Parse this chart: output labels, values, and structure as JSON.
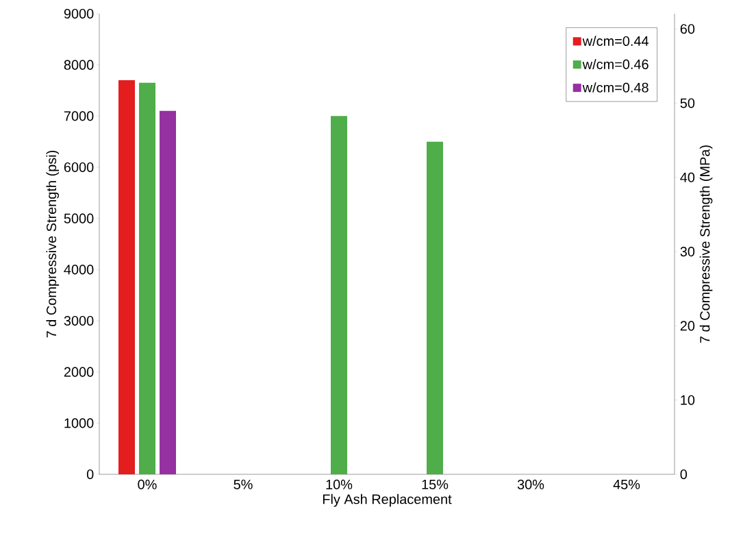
{
  "chart_data": {
    "type": "bar",
    "xlabel": "Fly Ash Replacement",
    "ylabel": "7 d Compressive Strength (psi)",
    "y2label": "7 d Compressive Strength (MPa)",
    "categories": [
      "0%",
      "5%",
      "10%",
      "15%",
      "30%",
      "45%"
    ],
    "series": [
      {
        "name": "w/cm=0.44",
        "color": "#e41d1f",
        "values": [
          7700,
          null,
          null,
          null,
          null,
          null
        ]
      },
      {
        "name": "w/cm=0.46",
        "color": "#4fad4a",
        "values": [
          7650,
          null,
          7000,
          6500,
          null,
          null
        ]
      },
      {
        "name": "w/cm=0.48",
        "color": "#9531a0",
        "values": [
          7100,
          null,
          null,
          null,
          null,
          null
        ]
      }
    ],
    "ylim": [
      0,
      9000
    ],
    "yticks": [
      0,
      1000,
      2000,
      3000,
      4000,
      5000,
      6000,
      7000,
      8000,
      9000
    ],
    "y2lim": [
      0,
      62.05
    ],
    "y2ticks": [
      0,
      10,
      20,
      30,
      40,
      50,
      60
    ],
    "grid": false,
    "legend": "top right"
  }
}
